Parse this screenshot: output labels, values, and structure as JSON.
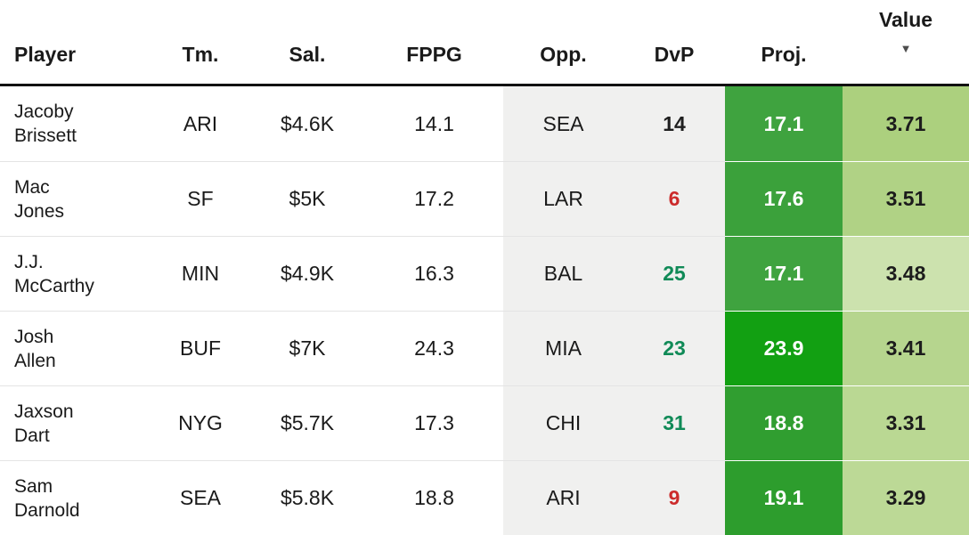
{
  "header": {
    "player": "Player",
    "team": "Tm.",
    "salary": "Sal.",
    "fppg": "FPPG",
    "opp": "Opp.",
    "dvp": "DvP",
    "proj": "Proj.",
    "value": "Value",
    "sort_icon": "▼",
    "sort_state": "value-descending"
  },
  "colors": {
    "gray_column_bg": "#f0f0ef",
    "dvp_neutral": "#1f1f1f",
    "dvp_bad": "#cc2b2b",
    "dvp_good": "#108a57",
    "header_border": "#111111"
  },
  "rows": [
    {
      "player_first": "Jacoby",
      "player_last": "Brissett",
      "team": "ARI",
      "salary": "$4.6K",
      "fppg": "14.1",
      "opp": "SEA",
      "dvp": "14",
      "dvp_color": "#1f1f1f",
      "proj": "17.1",
      "proj_bg": "#3fa33f",
      "value": "3.71",
      "value_bg": "#acd07e"
    },
    {
      "player_first": "Mac",
      "player_last": "Jones",
      "team": "SF",
      "salary": "$5K",
      "fppg": "17.2",
      "opp": "LAR",
      "dvp": "6",
      "dvp_color": "#cc2b2b",
      "proj": "17.6",
      "proj_bg": "#3ba13b",
      "value": "3.51",
      "value_bg": "#b0d285"
    },
    {
      "player_first": "J.J.",
      "player_last": "McCarthy",
      "team": "MIN",
      "salary": "$4.9K",
      "fppg": "16.3",
      "opp": "BAL",
      "dvp": "25",
      "dvp_color": "#108a57",
      "proj": "17.1",
      "proj_bg": "#3fa33f",
      "value": "3.48",
      "value_bg": "#cce2ae"
    },
    {
      "player_first": "Josh",
      "player_last": "Allen",
      "team": "BUF",
      "salary": "$7K",
      "fppg": "24.3",
      "opp": "MIA",
      "dvp": "23",
      "dvp_color": "#108a57",
      "proj": "23.9",
      "proj_bg": "#12a012",
      "value": "3.41",
      "value_bg": "#b6d58e"
    },
    {
      "player_first": "Jaxson",
      "player_last": "Dart",
      "team": "NYG",
      "salary": "$5.7K",
      "fppg": "17.3",
      "opp": "CHI",
      "dvp": "31",
      "dvp_color": "#108a57",
      "proj": "18.8",
      "proj_bg": "#309e30",
      "value": "3.31",
      "value_bg": "#bad893"
    },
    {
      "player_first": "Sam",
      "player_last": "Darnold",
      "team": "SEA",
      "salary": "$5.8K",
      "fppg": "18.8",
      "opp": "ARI",
      "dvp": "9",
      "dvp_color": "#cc2b2b",
      "proj": "19.1",
      "proj_bg": "#2d9d2d",
      "value": "3.29",
      "value_bg": "#bcd996"
    }
  ]
}
